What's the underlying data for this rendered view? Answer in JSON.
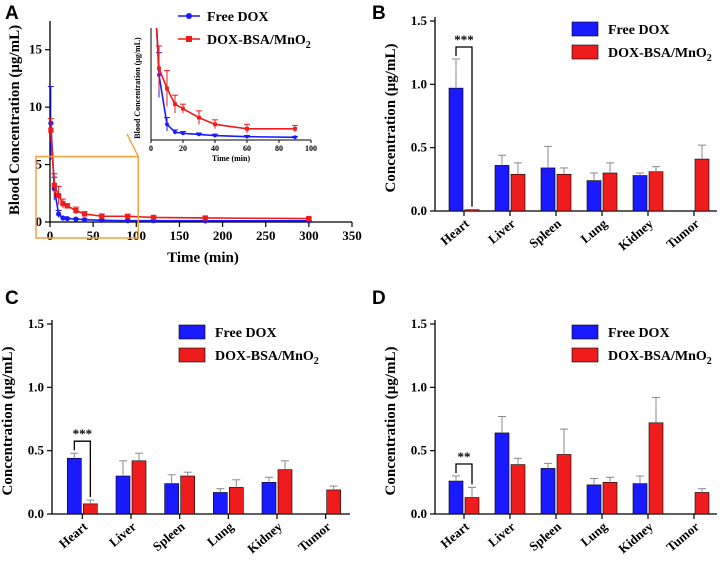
{
  "colors": {
    "free": "#1a1aff",
    "dox": "#ee1c1c",
    "zoom": "#f0a040",
    "axis": "#000000"
  },
  "chart_data": [
    {
      "panel": "A",
      "type": "line",
      "xlabel": "Time (min)",
      "ylabel": "Blood Concentration (μg/mL)",
      "xlim": [
        0,
        350
      ],
      "ylim": [
        0,
        17.5
      ],
      "xticks": [
        0,
        50,
        100,
        150,
        200,
        250,
        300,
        350
      ],
      "yticks": [
        0,
        5,
        10,
        15
      ],
      "legend": "top-right",
      "series": [
        {
          "name": "Free DOX",
          "key": "free",
          "x": [
            1,
            5,
            10,
            15,
            20,
            30,
            40,
            60,
            90,
            120,
            180,
            300
          ],
          "y": [
            8.6,
            2.9,
            0.7,
            0.35,
            0.3,
            0.25,
            0.2,
            0.15,
            0.12,
            0.12,
            0.1,
            0.1
          ],
          "err": [
            3.2,
            1.0,
            0.3,
            0.1,
            0.08,
            0.06,
            0.06,
            0.05,
            0.04,
            0.04,
            0.03,
            0.03
          ]
        },
        {
          "name": "DOX-BSA/MnO2",
          "key": "dox",
          "x": [
            1,
            5,
            10,
            15,
            20,
            30,
            40,
            60,
            90,
            120,
            180,
            300
          ],
          "y": [
            8.0,
            3.2,
            2.3,
            1.6,
            1.4,
            1.0,
            0.7,
            0.5,
            0.5,
            0.4,
            0.35,
            0.3
          ],
          "err": [
            1.0,
            1.0,
            0.8,
            0.4,
            0.2,
            0.3,
            0.2,
            0.2,
            0.15,
            0.1,
            0.1,
            0.1
          ]
        }
      ],
      "inset": {
        "xlabel": "Time (min)",
        "ylabel": "Blood Concentration (μg/mL)",
        "xlim": [
          0,
          100
        ],
        "ylim": [
          0,
          5
        ],
        "xticks": [
          0,
          20,
          40,
          60,
          80,
          100
        ]
      },
      "zoom_box": {
        "x": [
          0,
          100
        ],
        "y": [
          0,
          5
        ]
      }
    },
    {
      "panel": "B",
      "type": "bar",
      "categories": [
        "Heart",
        "Liver",
        "Spleen",
        "Lung",
        "Kidney",
        "Tumor"
      ],
      "ylabel": "Concentration (μg/mL)",
      "ylim": [
        0,
        1.5
      ],
      "yticks": [
        "0.0",
        "0.5",
        "1.0",
        "1.5"
      ],
      "legend": "top-right",
      "series": [
        {
          "name": "Free DOX",
          "key": "free",
          "values": [
            0.97,
            0.36,
            0.34,
            0.24,
            0.28,
            null
          ],
          "err": [
            0.23,
            0.08,
            0.17,
            0.06,
            0.02,
            null
          ]
        },
        {
          "name": "DOX-BSA/MnO2",
          "key": "dox",
          "values": [
            0.01,
            0.29,
            0.29,
            0.3,
            0.31,
            0.41
          ],
          "err": [
            0.0,
            0.09,
            0.05,
            0.08,
            0.04,
            0.11
          ]
        }
      ],
      "significance": {
        "category": "Heart",
        "label": "***"
      }
    },
    {
      "panel": "C",
      "type": "bar",
      "categories": [
        "Heart",
        "Liver",
        "Spleen",
        "Lung",
        "Kidney",
        "Tumor"
      ],
      "ylabel": "Concentration (μg/mL)",
      "ylim": [
        0,
        1.5
      ],
      "yticks": [
        "0.0",
        "0.5",
        "1.0",
        "1.5"
      ],
      "legend": "top-right",
      "series": [
        {
          "name": "Free DOX",
          "key": "free",
          "values": [
            0.44,
            0.3,
            0.24,
            0.17,
            0.25,
            null
          ],
          "err": [
            0.04,
            0.12,
            0.07,
            0.03,
            0.04,
            null
          ]
        },
        {
          "name": "DOX-BSA/MnO2",
          "key": "dox",
          "values": [
            0.08,
            0.42,
            0.3,
            0.21,
            0.35,
            0.19
          ],
          "err": [
            0.03,
            0.06,
            0.03,
            0.06,
            0.07,
            0.03
          ]
        }
      ],
      "significance": {
        "category": "Heart",
        "label": "***"
      }
    },
    {
      "panel": "D",
      "type": "bar",
      "categories": [
        "Heart",
        "Liver",
        "Spleen",
        "Lung",
        "Kidney",
        "Tumor"
      ],
      "ylabel": "Concentration (μg/mL)",
      "ylim": [
        0,
        1.5
      ],
      "yticks": [
        "0.0",
        "0.5",
        "1.0",
        "1.5"
      ],
      "legend": "top-right",
      "series": [
        {
          "name": "Free DOX",
          "key": "free",
          "values": [
            0.26,
            0.64,
            0.36,
            0.23,
            0.24,
            null
          ],
          "err": [
            0.04,
            0.13,
            0.04,
            0.05,
            0.06,
            null
          ]
        },
        {
          "name": "DOX-BSA/MnO2",
          "key": "dox",
          "values": [
            0.13,
            0.39,
            0.47,
            0.25,
            0.72,
            0.17
          ],
          "err": [
            0.08,
            0.05,
            0.2,
            0.04,
            0.2,
            0.03
          ]
        }
      ],
      "significance": {
        "category": "Heart",
        "label": "**"
      }
    }
  ]
}
